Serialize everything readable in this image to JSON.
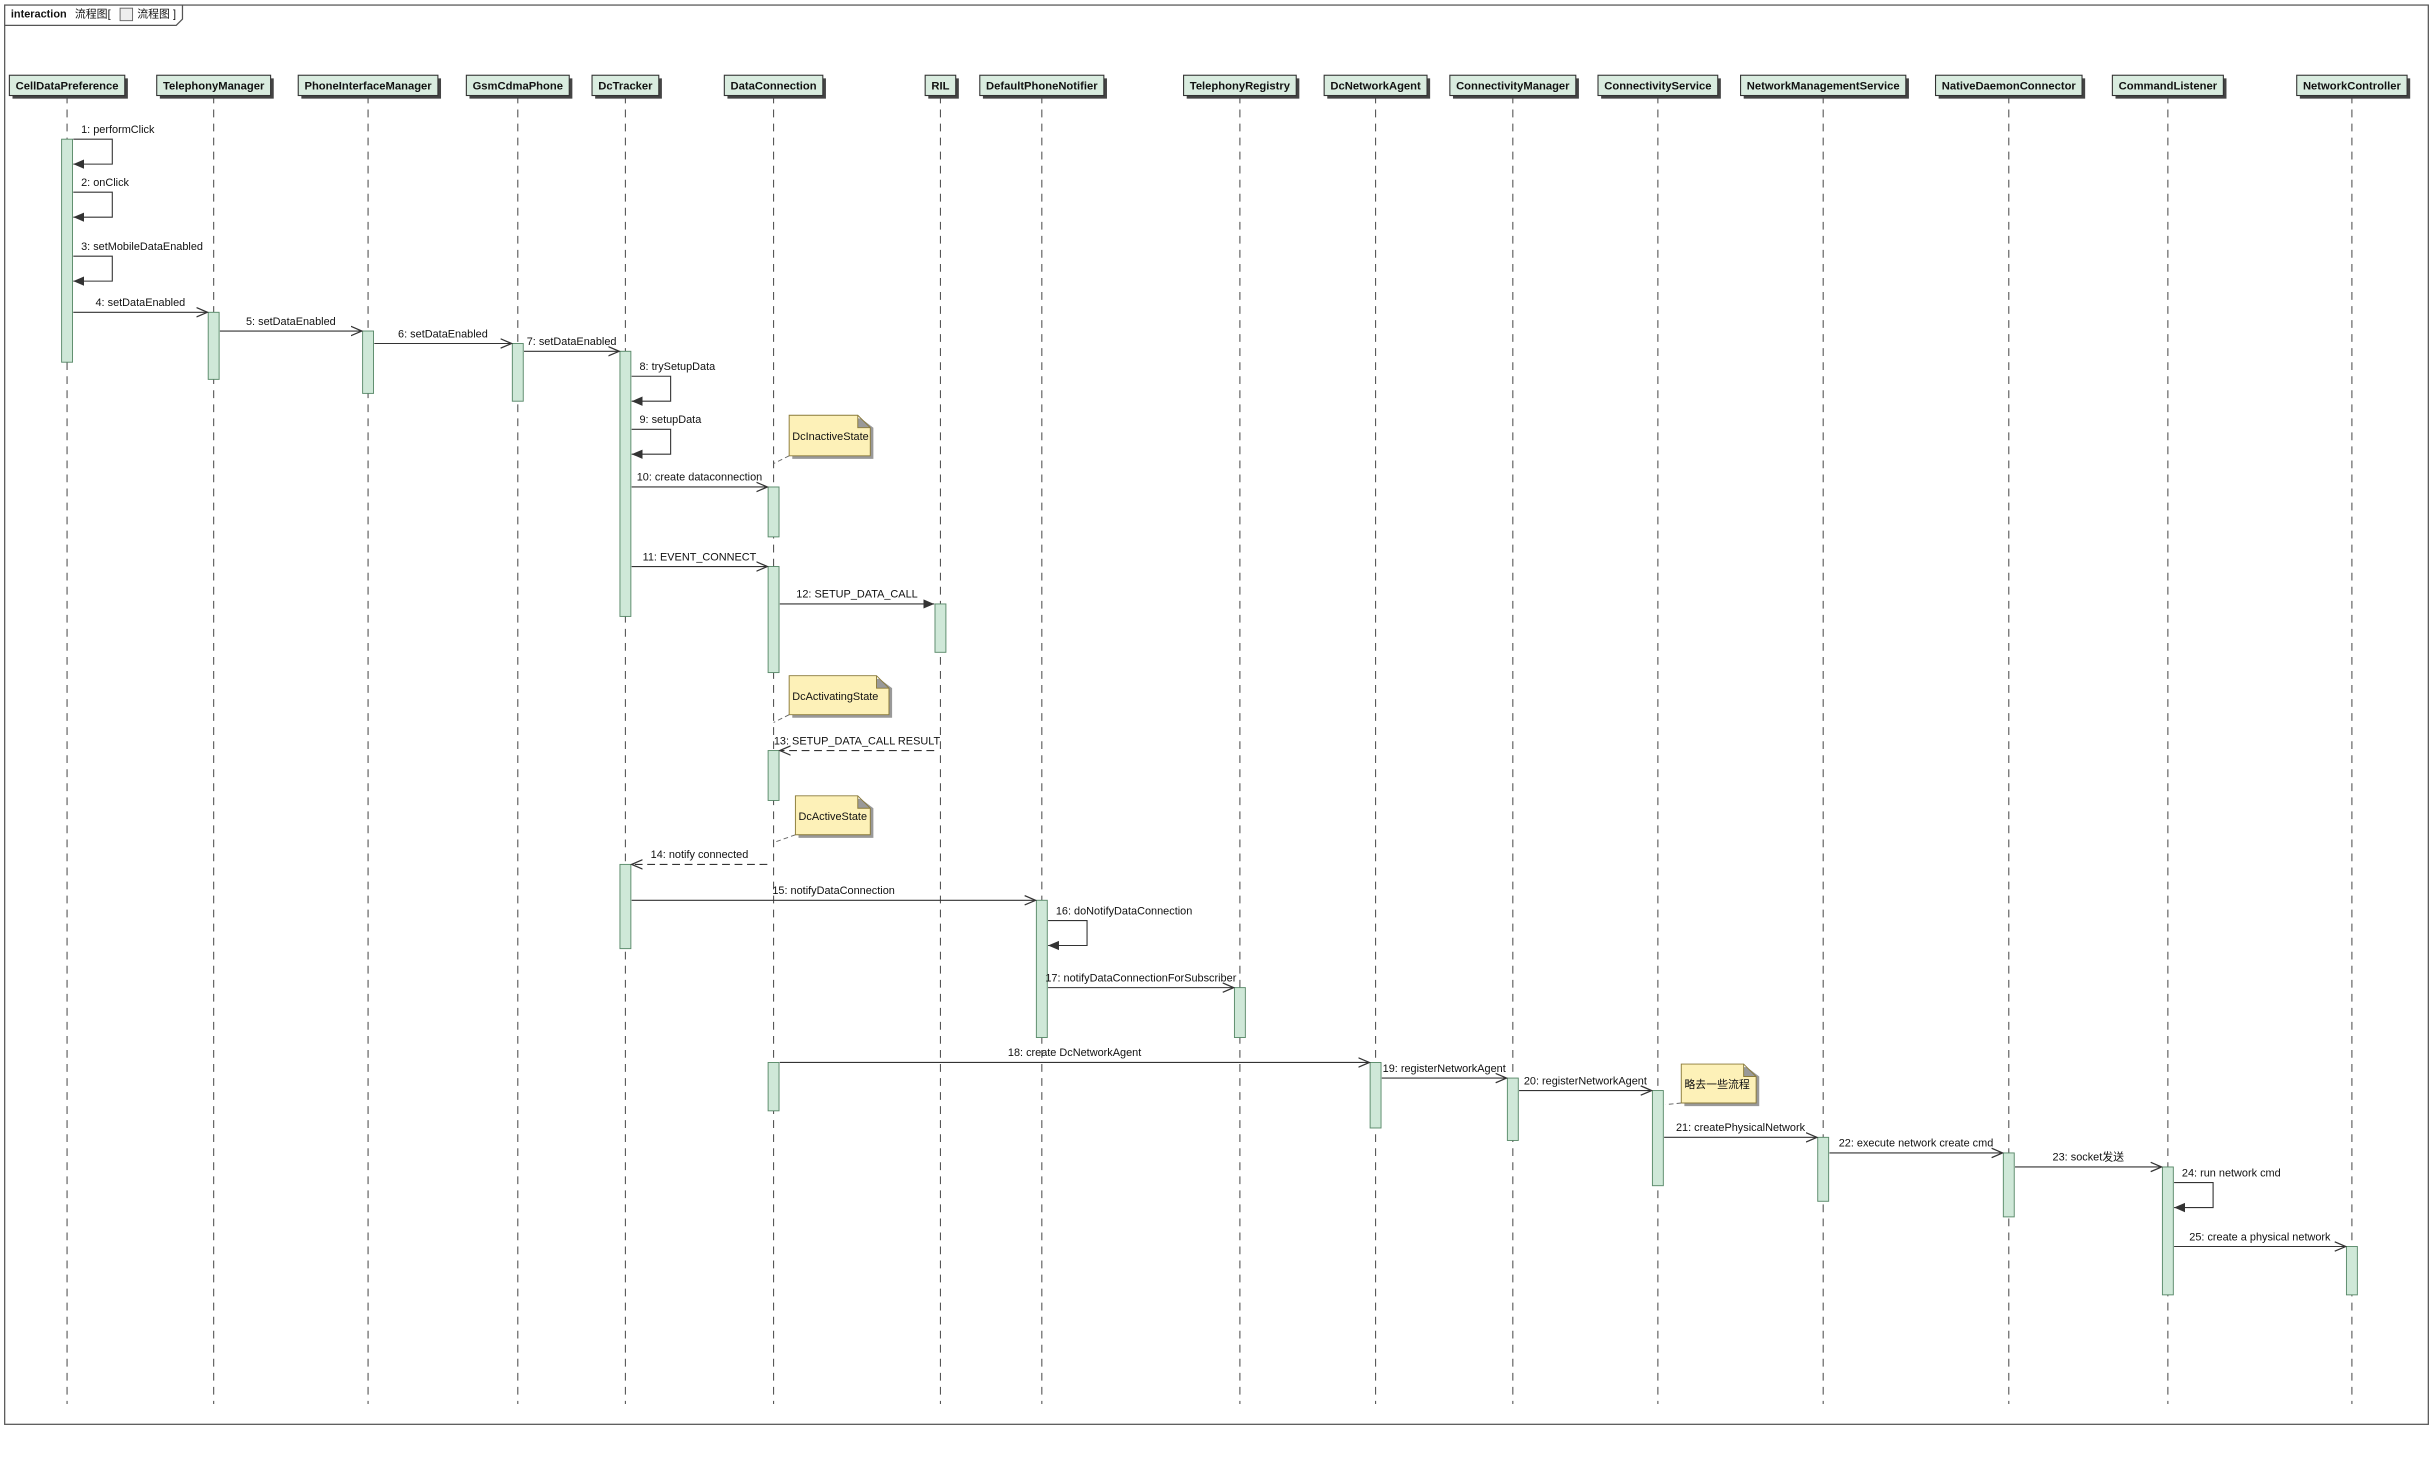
{
  "frame": {
    "kind": "interaction",
    "name": "流程图[",
    "name_suffix": "流程图 ]"
  },
  "participants": [
    "CellDataPreference",
    "TelephonyManager",
    "PhoneInterfaceManager",
    "GsmCdmaPhone",
    "DcTracker",
    "DataConnection",
    "RIL",
    "DefaultPhoneNotifier",
    "TelephonyRegistry",
    "DcNetworkAgent",
    "ConnectivityManager",
    "ConnectivityService",
    "NetworkManagementService",
    "NativeDaemonConnector",
    "CommandListener",
    "NetworkController"
  ],
  "messages": [
    "1: performClick",
    "2: onClick",
    "3: setMobileDataEnabled",
    "4: setDataEnabled",
    "5: setDataEnabled",
    "6: setDataEnabled",
    "7: setDataEnabled",
    "8: trySetupData",
    "9: setupData",
    "10: create dataconnection",
    "11: EVENT_CONNECT",
    "12: SETUP_DATA_CALL",
    "13: SETUP_DATA_CALL RESULT",
    "14: notify connected",
    "15: notifyDataConnection",
    "16: doNotifyDataConnection",
    "17: notifyDataConnectionForSubscriber",
    "18: create DcNetworkAgent",
    "19: registerNetworkAgent",
    "20: registerNetworkAgent",
    "21: createPhysicalNetwork",
    "22: execute network create cmd",
    "23: socket发送",
    "24: run network cmd",
    "25: create a physical network"
  ],
  "notes": [
    "DcInactiveState",
    "DcActivatingState",
    "DcActiveState",
    "略去一些流程"
  ]
}
